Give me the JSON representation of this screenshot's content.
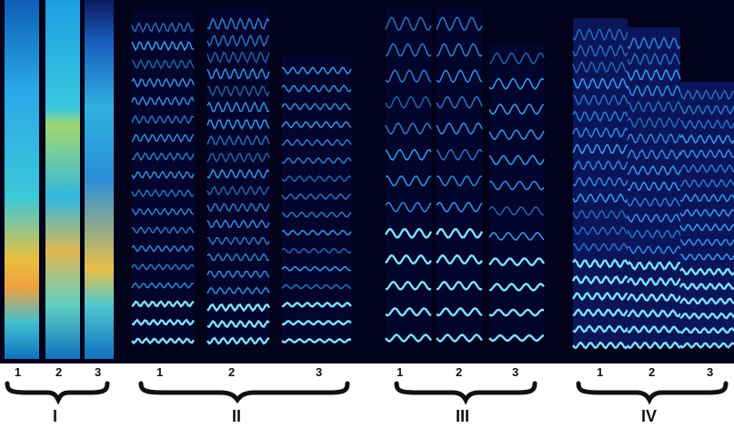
{
  "groups": [
    {
      "roman": "I",
      "numbers": [
        "1",
        "2",
        "3"
      ]
    },
    {
      "roman": "II",
      "numbers": [
        "1",
        "2",
        "3"
      ]
    },
    {
      "roman": "III",
      "numbers": [
        "1",
        "2",
        "3"
      ]
    },
    {
      "roman": "IV",
      "numbers": [
        "1",
        "2",
        "3"
      ]
    }
  ],
  "colors": {
    "background": "#02021a",
    "harmonic": "#3aa8ff",
    "harmonic_bright": "#7fe0ff",
    "broadband_low": "#1a8fd6",
    "broadband_mid": "#43e0e6",
    "broadband_hot": "#f0c030"
  }
}
